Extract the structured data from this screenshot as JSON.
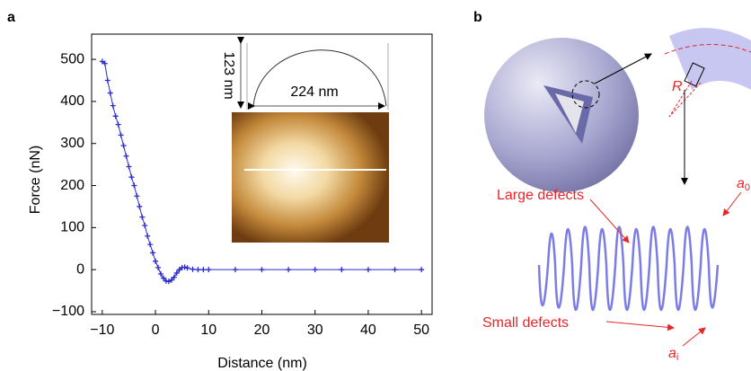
{
  "chart_data": {
    "type": "scatter",
    "x_label": "Distance (nm)",
    "y_label": "Force (nN)",
    "x": [
      -10,
      -9.5,
      -9,
      -8.5,
      -8,
      -7.5,
      -7,
      -6.5,
      -6,
      -5.5,
      -5,
      -4.5,
      -4,
      -3.5,
      -3,
      -2.5,
      -2,
      -1.5,
      -1,
      -0.5,
      0,
      0.5,
      1,
      1.5,
      2,
      2.5,
      3,
      3.5,
      4,
      4.5,
      5,
      5.5,
      6,
      7,
      8,
      9,
      10,
      15,
      20,
      25,
      30,
      35,
      40,
      45,
      50
    ],
    "series": [
      {
        "color": "#2b2bd0",
        "values": [
          495,
          490,
          450,
          420,
          390,
          365,
          345,
          320,
          295,
          270,
          245,
          220,
          200,
          175,
          150,
          125,
          105,
          80,
          60,
          40,
          20,
          5,
          -10,
          -20,
          -27,
          -28,
          -25,
          -18,
          -8,
          0,
          5,
          6,
          4,
          1,
          0,
          0,
          0,
          0,
          0,
          0,
          0,
          0,
          0,
          0,
          0
        ]
      }
    ],
    "xlim": [
      -12,
      52
    ],
    "xticks": [
      {
        "value": -10,
        "label": "−10"
      },
      0,
      10,
      20,
      30,
      40,
      50
    ],
    "ylim": [
      -100,
      560
    ],
    "yticks": [
      {
        "value": -100,
        "label": "−100"
      },
      0,
      100,
      200,
      300,
      400,
      500
    ],
    "grid": false
  },
  "panel_labels": [
    "a",
    "b"
  ],
  "inset": {
    "height_label": "123 nm",
    "width_label": "224 nm"
  },
  "diagram": {
    "radius_label": "R",
    "large_defects": "Large defects",
    "small_defects": "Small defects",
    "outer_gap": {
      "symbol": "a",
      "subscript": "0"
    },
    "inner_gap": {
      "symbol": "a",
      "subscript": "i"
    }
  }
}
